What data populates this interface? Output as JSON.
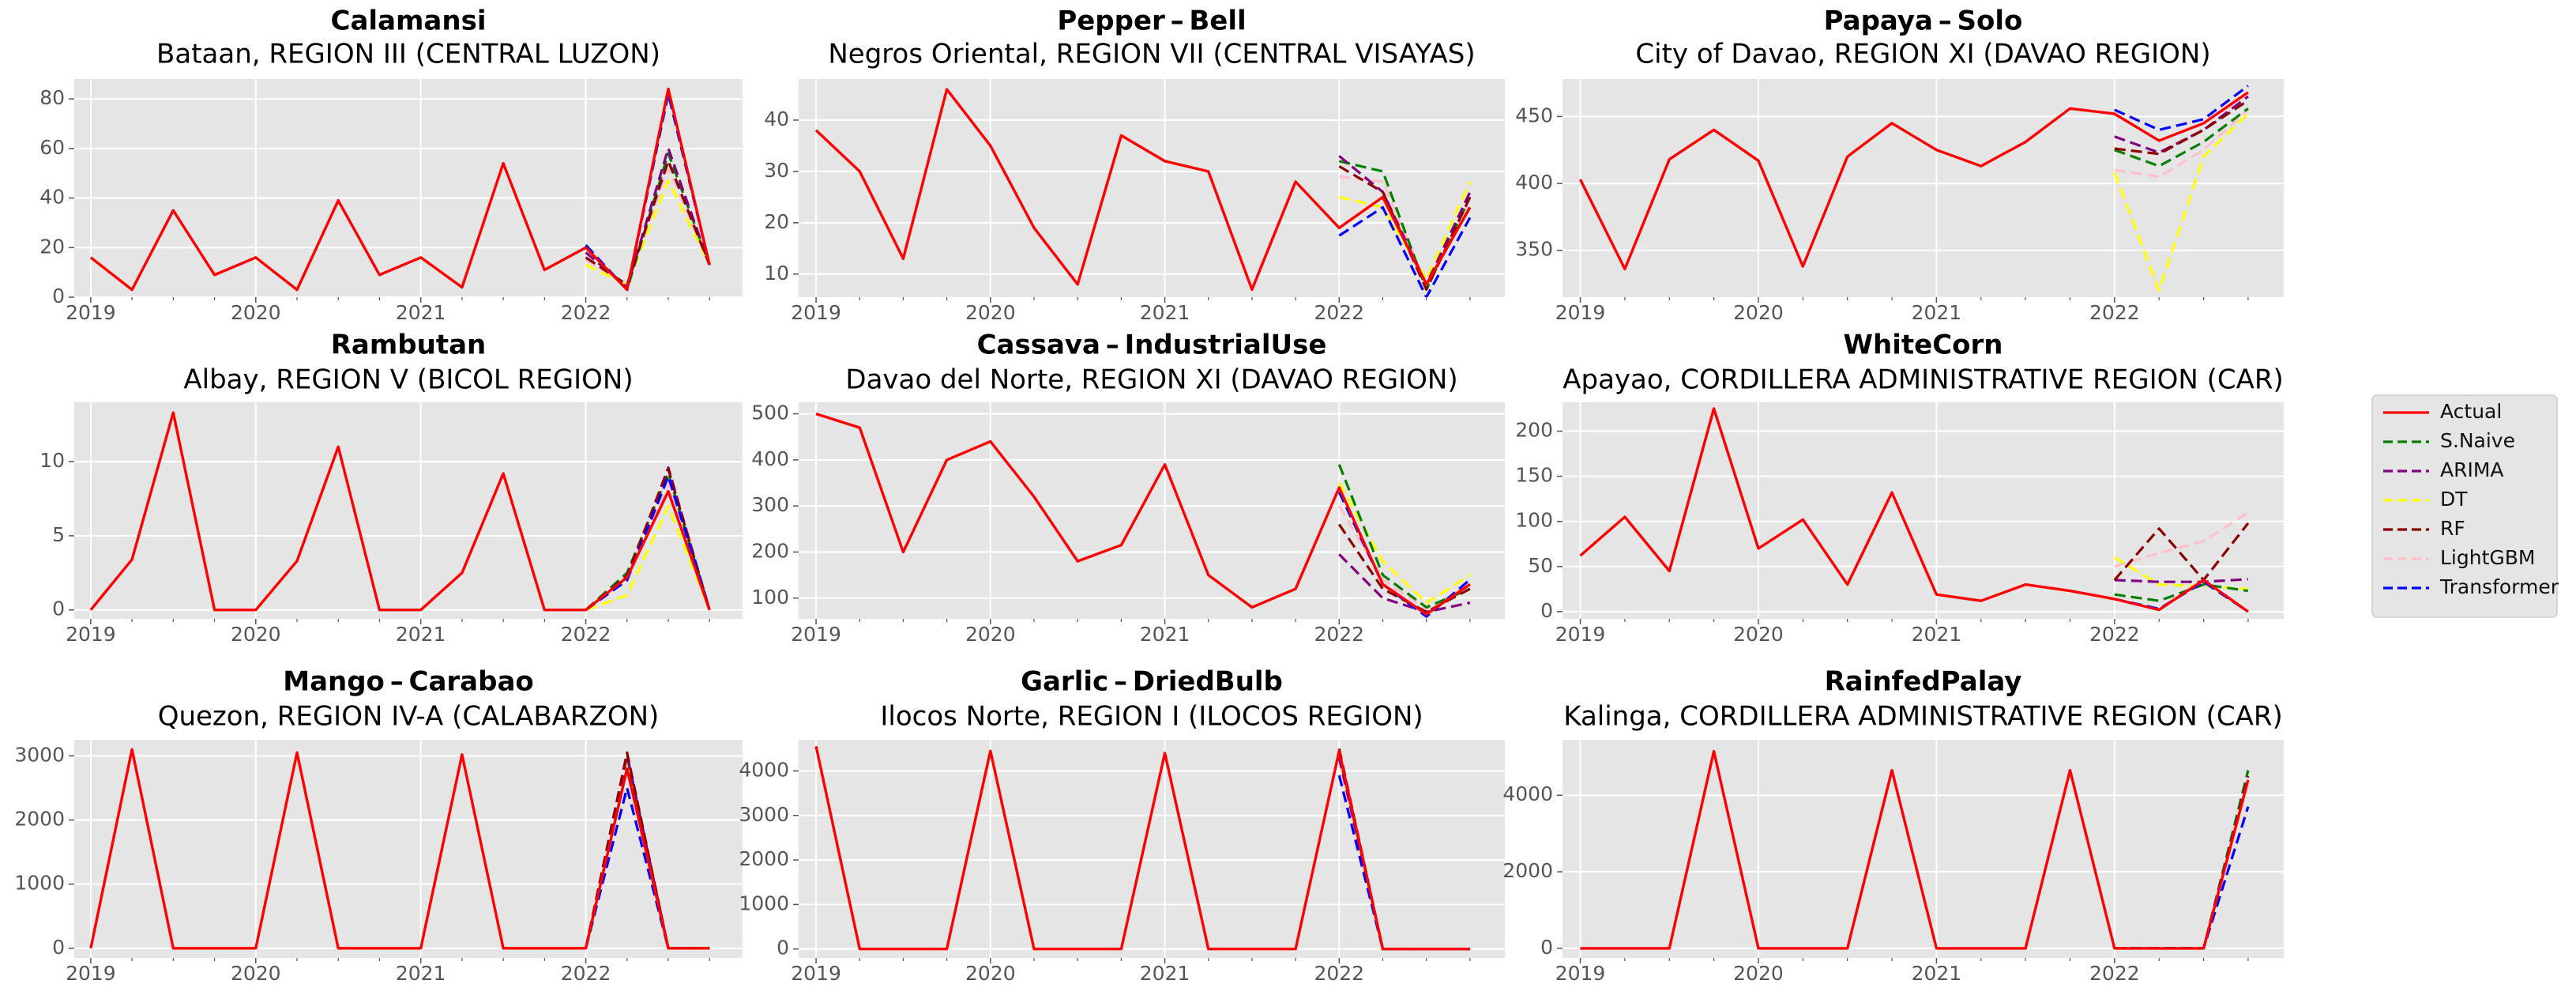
{
  "figure": {
    "legend": [
      {
        "name": "Actual",
        "color": "#ff0000",
        "dash": "solid"
      },
      {
        "name": "S.Naive",
        "color": "#008000",
        "dash": "dashed"
      },
      {
        "name": "ARIMA",
        "color": "#800080",
        "dash": "dashed"
      },
      {
        "name": "DT",
        "color": "#ffff00",
        "dash": "dashed"
      },
      {
        "name": "RF",
        "color": "#8b0000",
        "dash": "dashed"
      },
      {
        "name": "LightGBM",
        "color": "#ffc0cb",
        "dash": "dashed"
      },
      {
        "name": "Transformer",
        "color": "#0000ff",
        "dash": "dashed"
      }
    ],
    "plot_bg": "#e5e5e5",
    "grid_color": "#ffffff",
    "tick_color": "#555555",
    "legend_position": "center-right"
  },
  "chart_data": [
    {
      "type": "line",
      "title": "Calamansi",
      "subtitle": "Bataan, REGION III (CENTRAL LUZON)",
      "x": [
        2019,
        2019.25,
        2019.5,
        2019.75,
        2020,
        2020.25,
        2020.5,
        2020.75,
        2021,
        2021.25,
        2021.5,
        2021.75,
        2022,
        2022.25,
        2022.5,
        2022.75
      ],
      "x_ticks": [
        2019,
        2020,
        2021,
        2022
      ],
      "x_tick_labels": [
        "2019",
        "2020",
        "2021",
        "2022"
      ],
      "y_ticks": [
        0,
        20,
        40,
        60,
        80
      ],
      "ylim": [
        0,
        88
      ],
      "actual": [
        16,
        3,
        35,
        9,
        16,
        3,
        39,
        9,
        16,
        4,
        54,
        11,
        20,
        3,
        84,
        13
      ],
      "forecasts": {
        "S.Naive": [
          20,
          3,
          58,
          13
        ],
        "ARIMA": [
          18,
          4,
          60,
          13
        ],
        "DT": [
          13,
          5,
          47,
          13
        ],
        "RF": [
          16,
          5,
          55,
          13
        ],
        "LightGBM": [
          15,
          5,
          52,
          13
        ],
        "Transformer": [
          21,
          3,
          82,
          13
        ]
      }
    },
    {
      "type": "line",
      "title": "Pepper – Bell",
      "subtitle": "Negros Oriental, REGION VII (CENTRAL VISAYAS)",
      "x": [
        2019,
        2019.25,
        2019.5,
        2019.75,
        2020,
        2020.25,
        2020.5,
        2020.75,
        2021,
        2021.25,
        2021.5,
        2021.75,
        2022,
        2022.25,
        2022.5,
        2022.75
      ],
      "x_ticks": [
        2019,
        2020,
        2021,
        2022
      ],
      "x_tick_labels": [
        "2019",
        "2020",
        "2021",
        "2022"
      ],
      "y_ticks": [
        10,
        20,
        30,
        40
      ],
      "ylim": [
        5.5,
        48
      ],
      "actual": [
        38,
        30,
        13,
        46,
        35,
        19,
        8,
        37,
        32,
        30,
        7,
        28,
        19,
        25,
        8,
        23
      ],
      "forecasts": {
        "S.Naive": [
          32,
          30,
          7,
          25
        ],
        "ARIMA": [
          33,
          26,
          8,
          26
        ],
        "DT": [
          25,
          23,
          9,
          28
        ],
        "RF": [
          31,
          26,
          7,
          25
        ],
        "LightGBM": [
          29,
          28,
          8,
          24
        ],
        "Transformer": [
          17.5,
          23,
          5.5,
          21
        ]
      }
    },
    {
      "type": "line",
      "title": "Papaya – Solo",
      "subtitle": "City of Davao, REGION XI (DAVAO REGION)",
      "x": [
        2019,
        2019.25,
        2019.5,
        2019.75,
        2020,
        2020.25,
        2020.5,
        2020.75,
        2021,
        2021.25,
        2021.5,
        2021.75,
        2022,
        2022.25,
        2022.5,
        2022.75
      ],
      "x_ticks": [
        2019,
        2020,
        2021,
        2022
      ],
      "x_tick_labels": [
        "2019",
        "2020",
        "2021",
        "2022"
      ],
      "y_ticks": [
        350,
        400,
        450
      ],
      "ylim": [
        315,
        478
      ],
      "actual": [
        403,
        336,
        418,
        440,
        417,
        338,
        420,
        445,
        425,
        413,
        431,
        456,
        452,
        432,
        445,
        468
      ],
      "forecasts": {
        "S.Naive": [
          425,
          413,
          431,
          456
        ],
        "ARIMA": [
          435,
          423,
          440,
          465
        ],
        "DT": [
          408,
          320,
          420,
          452
        ],
        "RF": [
          426,
          422,
          440,
          462
        ],
        "LightGBM": [
          410,
          405,
          425,
          455
        ],
        "Transformer": [
          455,
          440,
          448,
          473
        ]
      }
    },
    {
      "type": "line",
      "title": "Rambutan",
      "subtitle": "Albay, REGION V (BICOL REGION)",
      "x": [
        2019,
        2019.25,
        2019.5,
        2019.75,
        2020,
        2020.25,
        2020.5,
        2020.75,
        2021,
        2021.25,
        2021.5,
        2021.75,
        2022,
        2022.25,
        2022.5,
        2022.75
      ],
      "x_ticks": [
        2019,
        2020,
        2021,
        2022
      ],
      "x_tick_labels": [
        "2019",
        "2020",
        "2021",
        "2022"
      ],
      "y_ticks": [
        0,
        5,
        10
      ],
      "ylim": [
        -0.6,
        14
      ],
      "actual": [
        0,
        3.4,
        13.3,
        0,
        0,
        3.3,
        11,
        0,
        0,
        2.5,
        9.2,
        0,
        0,
        2.2,
        8,
        0
      ],
      "forecasts": {
        "S.Naive": [
          0,
          2.5,
          9.2,
          0
        ],
        "ARIMA": [
          0,
          2.2,
          9.6,
          0
        ],
        "DT": [
          0,
          1,
          7,
          0
        ],
        "RF": [
          0,
          2.3,
          9.5,
          0
        ],
        "LightGBM": [
          0,
          2,
          8.5,
          0
        ],
        "Transformer": [
          0,
          2,
          9,
          0
        ]
      }
    },
    {
      "type": "line",
      "title": "Cassava – IndustrialUse",
      "subtitle": "Davao del Norte, REGION XI (DAVAO REGION)",
      "x": [
        2019,
        2019.25,
        2019.5,
        2019.75,
        2020,
        2020.25,
        2020.5,
        2020.75,
        2021,
        2021.25,
        2021.5,
        2021.75,
        2022,
        2022.25,
        2022.5,
        2022.75
      ],
      "x_ticks": [
        2019,
        2020,
        2021,
        2022
      ],
      "x_tick_labels": [
        "2019",
        "2020",
        "2021",
        "2022"
      ],
      "y_ticks": [
        100,
        200,
        300,
        400,
        500
      ],
      "ylim": [
        55,
        525
      ],
      "actual": [
        500,
        470,
        200,
        400,
        440,
        320,
        180,
        215,
        390,
        150,
        80,
        120,
        340,
        130,
        65,
        130
      ],
      "forecasts": {
        "S.Naive": [
          390,
          150,
          80,
          120
        ],
        "ARIMA": [
          195,
          100,
          70,
          90
        ],
        "DT": [
          350,
          180,
          90,
          150
        ],
        "RF": [
          260,
          120,
          70,
          120
        ],
        "LightGBM": [
          300,
          140,
          75,
          130
        ],
        "Transformer": [
          330,
          130,
          60,
          140
        ]
      }
    },
    {
      "type": "line",
      "title": "WhiteCorn",
      "subtitle": "Apayao, CORDILLERA ADMINISTRATIVE REGION (CAR)",
      "x": [
        2019,
        2019.25,
        2019.5,
        2019.75,
        2020,
        2020.25,
        2020.5,
        2020.75,
        2021,
        2021.25,
        2021.5,
        2021.75,
        2022,
        2022.25,
        2022.5,
        2022.75
      ],
      "x_ticks": [
        2019,
        2020,
        2021,
        2022
      ],
      "x_tick_labels": [
        "2019",
        "2020",
        "2021",
        "2022"
      ],
      "y_ticks": [
        0,
        50,
        100,
        150,
        200
      ],
      "ylim": [
        -8,
        232
      ],
      "actual": [
        62,
        105,
        45,
        225,
        70,
        102,
        30,
        132,
        19,
        12,
        30,
        23,
        14,
        2,
        35,
        0
      ],
      "forecasts": {
        "S.Naive": [
          19,
          12,
          30,
          23
        ],
        "ARIMA": [
          35,
          33,
          33,
          36
        ],
        "DT": [
          60,
          30,
          28,
          25
        ],
        "RF": [
          35,
          92,
          35,
          98
        ],
        "LightGBM": [
          50,
          65,
          78,
          110
        ],
        "Transformer": [
          14,
          3,
          33,
          0
        ]
      }
    },
    {
      "type": "line",
      "title": "Mango – Carabao",
      "subtitle": "Quezon, REGION IV-A (CALABARZON)",
      "x": [
        2019,
        2019.25,
        2019.5,
        2019.75,
        2020,
        2020.25,
        2020.5,
        2020.75,
        2021,
        2021.25,
        2021.5,
        2021.75,
        2022,
        2022.25,
        2022.5,
        2022.75
      ],
      "x_ticks": [
        2019,
        2020,
        2021,
        2022
      ],
      "x_tick_labels": [
        "2019",
        "2020",
        "2021",
        "2022"
      ],
      "y_ticks": [
        0,
        1000,
        2000,
        3000
      ],
      "ylim": [
        -150,
        3250
      ],
      "actual": [
        0,
        3100,
        0,
        0,
        0,
        3050,
        0,
        0,
        0,
        3020,
        0,
        0,
        0,
        2800,
        0,
        0
      ],
      "forecasts": {
        "S.Naive": [
          0,
          3020,
          0,
          0
        ],
        "ARIMA": [
          0,
          3000,
          0,
          0
        ],
        "DT": [
          0,
          2900,
          0,
          0
        ],
        "RF": [
          0,
          3050,
          0,
          0
        ],
        "LightGBM": [
          0,
          2950,
          0,
          0
        ],
        "Transformer": [
          0,
          2500,
          0,
          0
        ]
      }
    },
    {
      "type": "line",
      "title": "Garlic – DriedBulb",
      "subtitle": "Ilocos Norte, REGION I (ILOCOS REGION)",
      "x": [
        2019,
        2019.25,
        2019.5,
        2019.75,
        2020,
        2020.25,
        2020.5,
        2020.75,
        2021,
        2021.25,
        2021.5,
        2021.75,
        2022,
        2022.25,
        2022.5,
        2022.75
      ],
      "x_ticks": [
        2019,
        2020,
        2021,
        2022
      ],
      "x_tick_labels": [
        "2019",
        "2020",
        "2021",
        "2022"
      ],
      "y_ticks": [
        0,
        1000,
        2000,
        3000,
        4000
      ],
      "ylim": [
        -200,
        4700
      ],
      "actual": [
        4550,
        0,
        0,
        0,
        4450,
        0,
        0,
        0,
        4400,
        0,
        0,
        0,
        4450,
        0,
        0,
        0
      ],
      "forecasts": {
        "S.Naive": [
          4400,
          0,
          0,
          0
        ],
        "ARIMA": [
          4300,
          0,
          0,
          0
        ],
        "DT": [
          4350,
          0,
          0,
          0
        ],
        "RF": [
          4500,
          0,
          0,
          0
        ],
        "LightGBM": [
          4200,
          0,
          0,
          0
        ],
        "Transformer": [
          3900,
          0,
          0,
          0
        ]
      }
    },
    {
      "type": "line",
      "title": "RainfedPalay",
      "subtitle": "Kalinga, CORDILLERA ADMINISTRATIVE REGION (CAR)",
      "x": [
        2019,
        2019.25,
        2019.5,
        2019.75,
        2020,
        2020.25,
        2020.5,
        2020.75,
        2021,
        2021.25,
        2021.5,
        2021.75,
        2022,
        2022.25,
        2022.5,
        2022.75
      ],
      "x_ticks": [
        2019,
        2020,
        2021,
        2022
      ],
      "x_tick_labels": [
        "2019",
        "2020",
        "2021",
        "2022"
      ],
      "y_ticks": [
        0,
        2000,
        4000
      ],
      "ylim": [
        -250,
        5450
      ],
      "actual": [
        0,
        0,
        0,
        5150,
        0,
        0,
        0,
        4650,
        0,
        0,
        0,
        4650,
        0,
        0,
        0,
        4400
      ],
      "forecasts": {
        "S.Naive": [
          0,
          0,
          0,
          4650
        ],
        "ARIMA": [
          0,
          0,
          0,
          4500
        ],
        "DT": [
          0,
          0,
          0,
          4600
        ],
        "RF": [
          0,
          0,
          0,
          4450
        ],
        "LightGBM": [
          0,
          0,
          0,
          4300
        ],
        "Transformer": [
          0,
          0,
          0,
          3700
        ]
      }
    }
  ]
}
